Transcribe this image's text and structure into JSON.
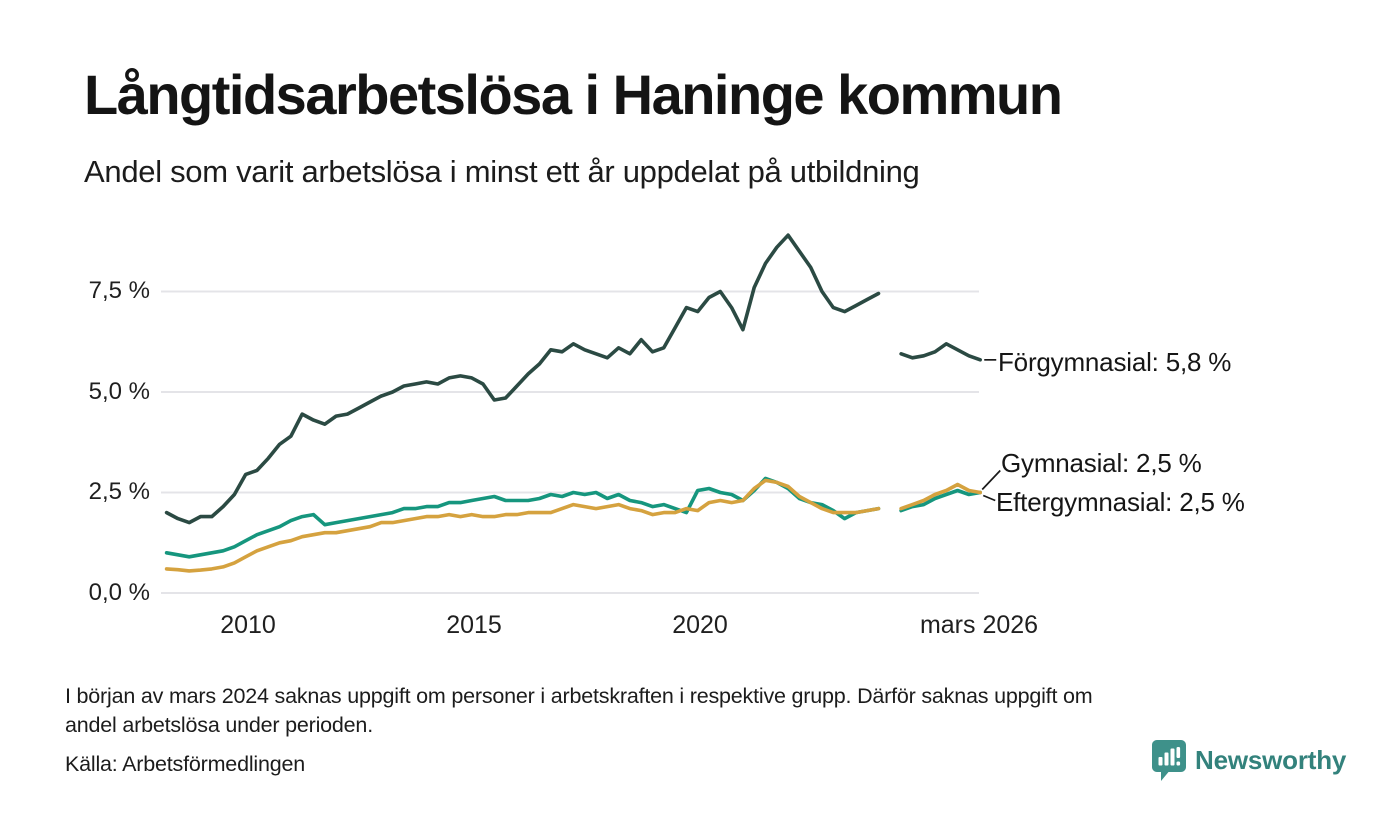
{
  "chart_data": {
    "type": "line",
    "title": "Långtidsarbetslösa i Haninge kommun",
    "subtitle": "Andel som varit arbetslösa i minst ett år uppdelat på utbildning",
    "x_unit": "decimal_year",
    "x_start": 2008.2,
    "x_step": 0.25,
    "xlim": [
      2008.1,
      2026.45
    ],
    "ylim": [
      0,
      9.3
    ],
    "grid": "horizontal-only",
    "grid_color": "#e4e4e8",
    "connector_color": "#1a1a1a",
    "x_ticks": [
      {
        "value": 2010,
        "label": "2010"
      },
      {
        "value": 2015,
        "label": "2015"
      },
      {
        "value": 2020,
        "label": "2020"
      },
      {
        "value": 2026.17,
        "label": "mars 2026"
      }
    ],
    "y_ticks": [
      {
        "value": 0,
        "label": "0,0 %"
      },
      {
        "value": 2.5,
        "label": "2,5 %"
      },
      {
        "value": 5,
        "label": "5,0 %"
      },
      {
        "value": 7.5,
        "label": "7,5 %"
      }
    ],
    "series": [
      {
        "id": "gymnasial",
        "name": "Gymnasial",
        "label": "Gymnasial: 2,5 %",
        "end_value": "2,5 %",
        "color": "#16967e",
        "values": [
          1.0,
          0.95,
          0.9,
          0.95,
          1.0,
          1.05,
          1.15,
          1.3,
          1.45,
          1.55,
          1.65,
          1.8,
          1.9,
          1.95,
          1.7,
          1.75,
          1.8,
          1.85,
          1.9,
          1.95,
          2.0,
          2.1,
          2.1,
          2.15,
          2.15,
          2.25,
          2.25,
          2.3,
          2.35,
          2.4,
          2.3,
          2.3,
          2.3,
          2.35,
          2.45,
          2.4,
          2.5,
          2.45,
          2.5,
          2.35,
          2.45,
          2.3,
          2.25,
          2.15,
          2.2,
          2.1,
          2.0,
          2.55,
          2.6,
          2.5,
          2.45,
          2.3,
          2.55,
          2.85,
          2.75,
          2.6,
          2.35,
          2.25,
          2.2,
          2.05,
          1.85,
          2.0,
          2.05,
          2.1,
          null,
          2.05,
          2.15,
          2.2,
          2.35,
          2.45,
          2.55,
          2.45,
          2.5
        ]
      },
      {
        "id": "eftergymnasial",
        "name": "Eftergymnasial",
        "label": "Eftergymnasial: 2,5 %",
        "end_value": "2,5 %",
        "color": "#d5a23f",
        "values": [
          0.6,
          0.58,
          0.55,
          0.57,
          0.6,
          0.65,
          0.75,
          0.9,
          1.05,
          1.15,
          1.25,
          1.3,
          1.4,
          1.45,
          1.5,
          1.5,
          1.55,
          1.6,
          1.65,
          1.75,
          1.75,
          1.8,
          1.85,
          1.9,
          1.9,
          1.95,
          1.9,
          1.95,
          1.9,
          1.9,
          1.95,
          1.95,
          2.0,
          2.0,
          2.0,
          2.1,
          2.2,
          2.15,
          2.1,
          2.15,
          2.2,
          2.1,
          2.05,
          1.95,
          2.0,
          2.0,
          2.1,
          2.05,
          2.25,
          2.3,
          2.25,
          2.3,
          2.6,
          2.8,
          2.75,
          2.65,
          2.4,
          2.25,
          2.1,
          2.0,
          2.0,
          2.0,
          2.05,
          2.1,
          null,
          2.1,
          2.2,
          2.3,
          2.45,
          2.55,
          2.7,
          2.55,
          2.5
        ]
      },
      {
        "id": "forgymnasial",
        "name": "Förgymnasial",
        "label": "Förgymnasial: 5,8 %",
        "end_value": "5,8 %",
        "color": "#2b4a43",
        "values": [
          2.0,
          1.85,
          1.75,
          1.9,
          1.9,
          2.15,
          2.45,
          2.95,
          3.05,
          3.35,
          3.7,
          3.9,
          4.45,
          4.3,
          4.2,
          4.4,
          4.45,
          4.6,
          4.75,
          4.9,
          5.0,
          5.15,
          5.2,
          5.25,
          5.2,
          5.35,
          5.4,
          5.35,
          5.2,
          4.8,
          4.85,
          5.15,
          5.45,
          5.7,
          6.05,
          6.0,
          6.2,
          6.05,
          5.95,
          5.85,
          6.1,
          5.95,
          6.3,
          6.0,
          6.1,
          6.6,
          7.1,
          7.0,
          7.35,
          7.5,
          7.1,
          6.55,
          7.6,
          8.2,
          8.6,
          8.9,
          8.5,
          8.1,
          7.5,
          7.1,
          7.0,
          7.15,
          7.3,
          7.45,
          null,
          5.95,
          5.85,
          5.9,
          6.0,
          6.2,
          6.05,
          5.9,
          5.8
        ]
      }
    ]
  },
  "footer": {
    "note": "I början av mars 2024 saknas uppgift om personer i arbetskraften i respektive grupp. Därför saknas uppgift om\nandel arbetslösa under perioden.",
    "source": "Källa: Arbetsförmedlingen",
    "brand": "Newsworthy",
    "brand_icon_color": "#3e918a",
    "brand_text_color": "#33827c"
  }
}
